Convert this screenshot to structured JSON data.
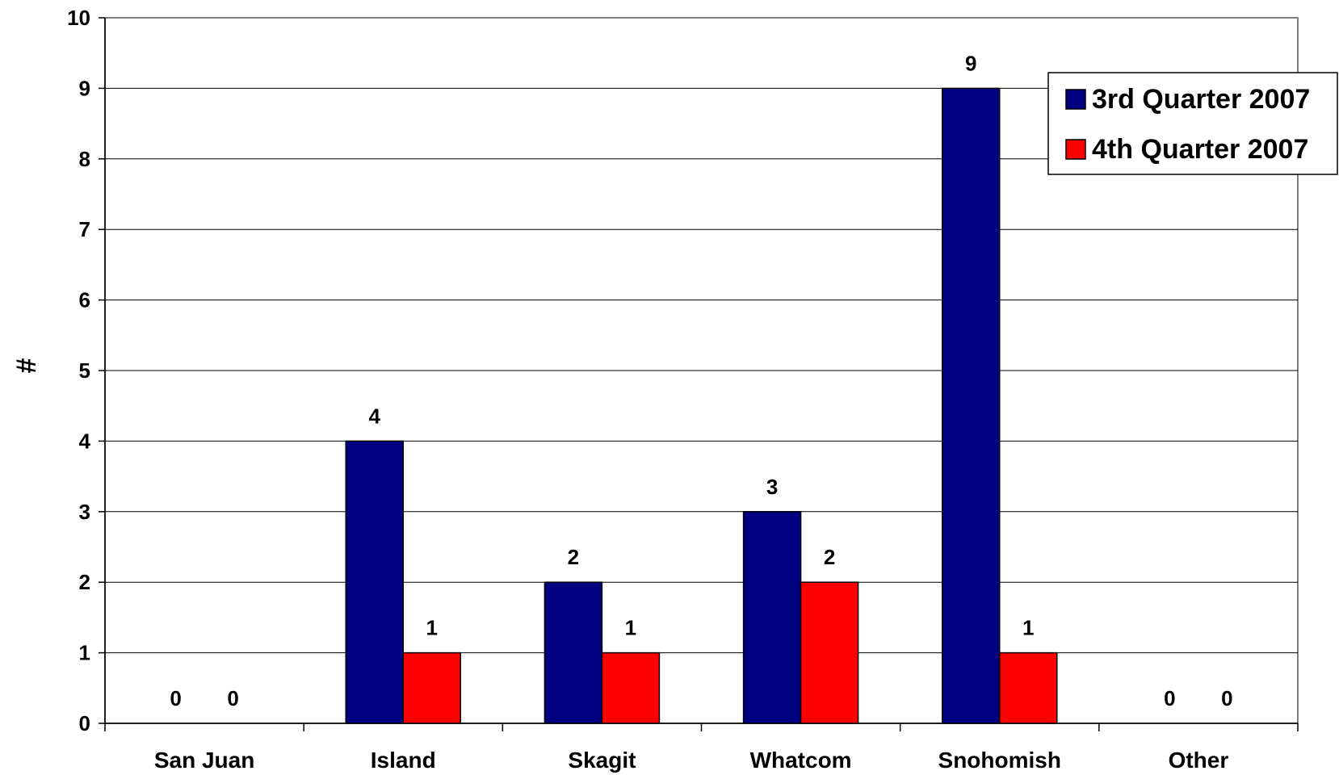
{
  "chart_data": {
    "type": "bar",
    "title": "",
    "xlabel": "",
    "ylabel": "#",
    "categories": [
      "San Juan",
      "Island",
      "Skagit",
      "Whatcom",
      "Snohomish",
      "Other"
    ],
    "series": [
      {
        "name": "3rd Quarter 2007",
        "color": "#000080",
        "values": [
          0,
          4,
          2,
          3,
          9,
          0
        ]
      },
      {
        "name": "4th Quarter 2007",
        "color": "#ff0000",
        "values": [
          0,
          1,
          1,
          2,
          1,
          0
        ]
      }
    ],
    "ylim": [
      0,
      10
    ],
    "yticks": [
      0,
      1,
      2,
      3,
      4,
      5,
      6,
      7,
      8,
      9,
      10
    ],
    "grid": true,
    "legend": "top-right",
    "data_labels": true
  }
}
